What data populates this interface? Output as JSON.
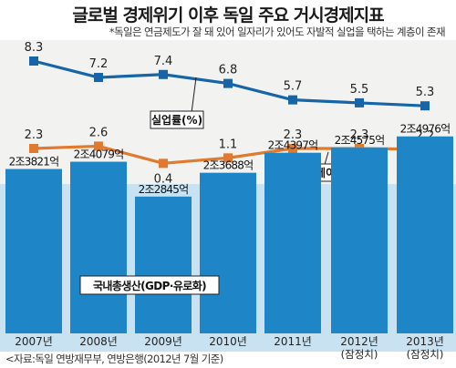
{
  "title": "글로벌 경제위기 이후 독일 주요 거시경제지표",
  "subtitle": "*독일은 연금제도가 잘 돼 있어 일자리가 있어도 자발적 실업을 택하는 계층이 존재",
  "source": "<자료:독일 연방재무부, 연방은행(2012년 7월 기준)",
  "colors": {
    "unemployment": "#1565a8",
    "inflation": "#e07a2e",
    "gdp": "#1e86c6",
    "top_panel": "#f2f2f1",
    "bottom_panel": "#c9e2f2"
  },
  "chart_data": [
    {
      "type": "line",
      "x": [
        "2007년",
        "2008년",
        "2009년",
        "2010년",
        "2011년",
        "2012년",
        "2013년"
      ],
      "series": [
        {
          "name": "실업률(%)",
          "values": [
            8.3,
            7.2,
            7.4,
            6.8,
            5.7,
            5.5,
            5.3
          ],
          "labels": [
            "8.3",
            "7.2",
            "7.4",
            "6.8",
            "5.7",
            "5.5",
            "5.3"
          ]
        },
        {
          "name": "인플레이션(%)",
          "values": [
            2.3,
            2.6,
            0.4,
            1.1,
            2.3,
            2.3,
            2.2
          ],
          "labels": [
            "2.3",
            "2.6",
            "0.4",
            "1.1",
            "2.3",
            "2.3",
            "2.2"
          ]
        }
      ]
    },
    {
      "type": "bar",
      "categories": [
        "2007년",
        "2008년",
        "2009년",
        "2010년",
        "2011년",
        "2012년",
        "2013년"
      ],
      "category_notes": [
        "",
        "",
        "",
        "",
        "",
        "(잠정치)",
        "(잠정치)"
      ],
      "series": [
        {
          "name": "국내총생산(GDP·유로화)",
          "values": [
            2382.1,
            2407.9,
            2284.5,
            2368.8,
            2439.7,
            2457.5,
            2497.6
          ],
          "labels": [
            "2조3821억",
            "2조4079억",
            "2조2845억",
            "2조3688억",
            "2조4397억",
            "2조4575억",
            "2조4976억"
          ]
        }
      ]
    }
  ]
}
